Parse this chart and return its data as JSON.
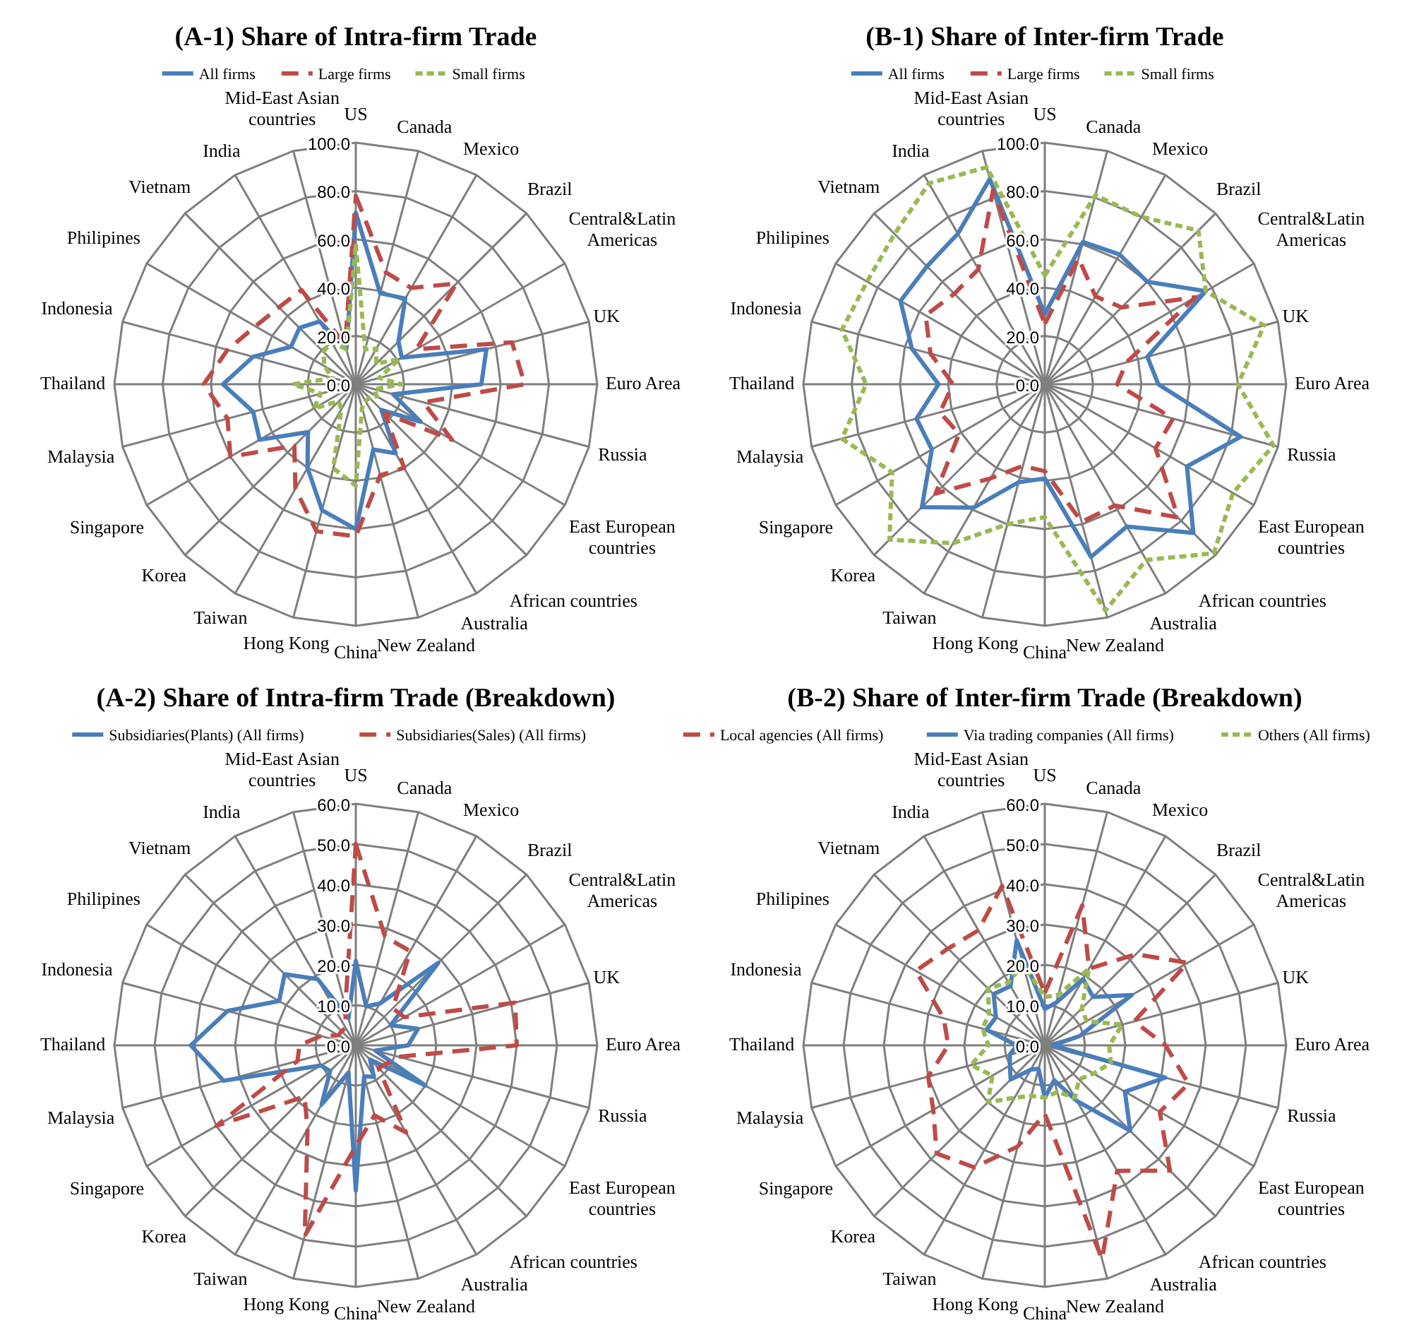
{
  "chart_data": [
    {
      "type": "radar",
      "title": "(A-1) Share of Intra-firm Trade",
      "categories": [
        "US",
        "Canada",
        "Mexico",
        "Brazil",
        "Central&Latin Americas",
        "UK",
        "Euro Area",
        "Russia",
        "East European countries",
        "African countries",
        "Australia",
        "New Zealand",
        "China",
        "Hong Kong",
        "Taiwan",
        "Korea",
        "Singapore",
        "Malaysia",
        "Thailand",
        "Indonesia",
        "Philipines",
        "Vietnam",
        "India",
        "Mid-East Asian countries"
      ],
      "series": [
        {
          "name": "All firms",
          "color": "#4a7ebb",
          "line_style": "solid",
          "values": [
            71,
            39,
            41,
            25,
            22,
            56,
            52,
            16,
            31,
            15,
            33,
            28,
            60,
            54,
            40,
            28,
            46,
            44,
            55,
            44,
            31,
            33,
            30,
            15
          ]
        },
        {
          "name": "Large firms",
          "color": "#be4b48",
          "line_style": "dashed",
          "values": [
            78,
            48,
            46,
            59,
            29,
            67,
            70,
            29,
            46,
            17,
            40,
            39,
            63,
            63,
            50,
            36,
            60,
            55,
            63,
            55,
            48,
            45,
            45,
            17
          ]
        },
        {
          "name": "Small firms",
          "color": "#98b954",
          "line_style": "dotted",
          "values": [
            58,
            15,
            17,
            12,
            21,
            10,
            19,
            8,
            10,
            8,
            8,
            10,
            42,
            36,
            12,
            10,
            20,
            15,
            26,
            10,
            15,
            19,
            20,
            15
          ]
        }
      ],
      "ylim": [
        0,
        100
      ],
      "yticks": [
        {
          "value": 0,
          "label": "0.0"
        },
        {
          "value": 20,
          "label": "20.0"
        },
        {
          "value": 40,
          "label": "40.0"
        },
        {
          "value": 60,
          "label": "60.0"
        },
        {
          "value": 80,
          "label": "80.0"
        },
        {
          "value": 100,
          "label": "100.0"
        }
      ],
      "grid": true,
      "legend": "top"
    },
    {
      "type": "radar",
      "title": "(B-1) Share of Inter-firm Trade",
      "categories": [
        "US",
        "Canada",
        "Mexico",
        "Brazil",
        "Central&Latin Americas",
        "UK",
        "Euro Area",
        "Russia",
        "East European countries",
        "African countries",
        "Australia",
        "New Zealand",
        "China",
        "Hong Kong",
        "Taiwan",
        "Korea",
        "Singapore",
        "Malaysia",
        "Thailand",
        "Indonesia",
        "Philipines",
        "Vietnam",
        "India",
        "Mid-East Asian countries"
      ],
      "series": [
        {
          "name": "All firms",
          "color": "#4a7ebb",
          "line_style": "solid",
          "values": [
            29,
            61,
            62,
            60,
            77,
            44,
            47,
            84,
            68,
            87,
            68,
            74,
            39,
            42,
            59,
            72,
            54,
            55,
            44,
            57,
            69,
            69,
            72,
            88
          ]
        },
        {
          "name": "Large firms",
          "color": "#be4b48",
          "line_style": "dashed",
          "values": [
            25,
            54,
            42,
            45,
            72,
            35,
            30,
            55,
            53,
            78,
            58,
            59,
            36,
            35,
            45,
            64,
            41,
            45,
            38,
            49,
            57,
            53,
            55,
            83
          ]
        },
        {
          "name": "Small firms",
          "color": "#98b954",
          "line_style": "dotted",
          "values": [
            45,
            81,
            80,
            90,
            77,
            94,
            80,
            98,
            90,
            99,
            84,
            97,
            55,
            60,
            76,
            91,
            73,
            87,
            74,
            87,
            85,
            88,
            96,
            93
          ]
        }
      ],
      "ylim": [
        0,
        100
      ],
      "yticks": [
        {
          "value": 0,
          "label": "0.0"
        },
        {
          "value": 20,
          "label": "20.0"
        },
        {
          "value": 40,
          "label": "40.0"
        },
        {
          "value": 60,
          "label": "60.0"
        },
        {
          "value": 80,
          "label": "80.0"
        },
        {
          "value": 100,
          "label": "100.0"
        }
      ],
      "grid": true,
      "legend": "top"
    },
    {
      "type": "radar",
      "title": "(A-2) Share of Intra-firm Trade (Breakdown)",
      "categories": [
        "US",
        "Canada",
        "Mexico",
        "Brazil",
        "Central&Latin Americas",
        "UK",
        "Euro Area",
        "Russia",
        "East European countries",
        "African countries",
        "Australia",
        "New Zealand",
        "China",
        "Hong Kong",
        "Taiwan",
        "Korea",
        "Singapore",
        "Malaysia",
        "Thailand",
        "Indonesia",
        "Philipines",
        "Vietnam",
        "India",
        "Mid-East Asian countries"
      ],
      "series": [
        {
          "name": "Subsidiaries(Plants) (All firms)",
          "color": "#4a7ebb",
          "line_style": "solid",
          "values": [
            21,
            10,
            12,
            29,
            10,
            16,
            13,
            5,
            20,
            5,
            9,
            8,
            36,
            7,
            17,
            9,
            10,
            34,
            41,
            33,
            22,
            25,
            19,
            7
          ]
        },
        {
          "name": "Subsidiaries(Sales) (All firms)",
          "color": "#be4b48",
          "line_style": "dashed",
          "values": [
            50,
            28,
            27,
            13,
            14,
            41,
            40,
            11,
            9,
            8,
            25,
            18,
            25,
            49,
            24,
            18,
            40,
            15,
            14,
            9,
            5,
            5,
            5,
            10
          ]
        }
      ],
      "ylim": [
        0,
        60
      ],
      "yticks": [
        {
          "value": 0,
          "label": "0.0"
        },
        {
          "value": 10,
          "label": "10.0"
        },
        {
          "value": 20,
          "label": "20.0"
        },
        {
          "value": 30,
          "label": "30.0"
        },
        {
          "value": 40,
          "label": "40.0"
        },
        {
          "value": 50,
          "label": "50.0"
        },
        {
          "value": 60,
          "label": "60.0"
        }
      ],
      "grid": true,
      "legend": "top"
    },
    {
      "type": "radar",
      "title": "(B-2) Share of Inter-firm Trade (Breakdown)",
      "categories": [
        "US",
        "Canada",
        "Mexico",
        "Brazil",
        "Central&Latin Americas",
        "UK",
        "Euro Area",
        "Russia",
        "East European countries",
        "African countries",
        "Australia",
        "New Zealand",
        "China",
        "Hong Kong",
        "Taiwan",
        "Korea",
        "Singapore",
        "Malaysia",
        "Thailand",
        "Indonesia",
        "Philipines",
        "Vietnam",
        "India",
        "Mid-East Asian countries"
      ],
      "series": [
        {
          "name": "Local agencies (All firms)",
          "color": "#be4b48",
          "line_style": "dashed",
          "values": [
            13,
            36,
            22,
            32,
            41,
            23,
            30,
            37,
            33,
            44,
            36,
            55,
            17,
            26,
            35,
            38,
            32,
            30,
            24,
            26,
            37,
            34,
            33,
            41
          ]
        },
        {
          "name": "Via trading companies (All firms)",
          "color": "#4a7ebb",
          "line_style": "solid",
          "values": [
            9,
            11,
            19,
            17,
            25,
            9,
            2,
            31,
            23,
            30,
            16,
            9,
            13,
            6,
            7,
            12,
            10,
            9,
            7,
            15,
            14,
            18,
            17,
            27
          ]
        },
        {
          "name": "Others (All firms)",
          "color": "#98b954",
          "line_style": "dotted",
          "values": [
            12,
            13,
            22,
            13,
            12,
            20,
            16,
            17,
            14,
            12,
            15,
            12,
            13,
            13,
            15,
            20,
            15,
            19,
            14,
            16,
            16,
            20,
            18,
            21
          ]
        }
      ],
      "ylim": [
        0,
        60
      ],
      "yticks": [
        {
          "value": 0,
          "label": "0.0"
        },
        {
          "value": 10,
          "label": "10.0"
        },
        {
          "value": 20,
          "label": "20.0"
        },
        {
          "value": 30,
          "label": "30.0"
        },
        {
          "value": 40,
          "label": "40.0"
        },
        {
          "value": 50,
          "label": "50.0"
        },
        {
          "value": 60,
          "label": "60.0"
        }
      ],
      "grid": true,
      "legend": "top"
    }
  ]
}
